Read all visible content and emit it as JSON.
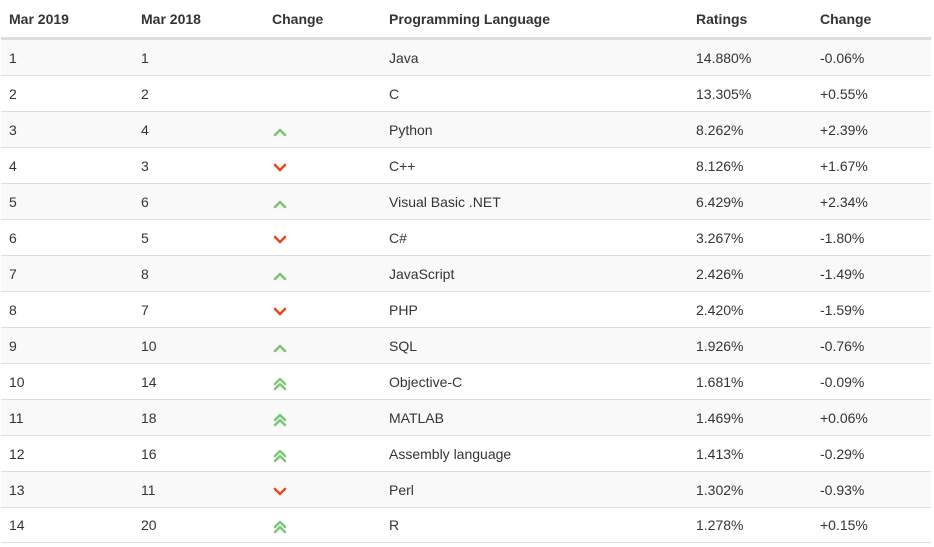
{
  "table": {
    "headers": [
      "Mar 2019",
      "Mar 2018",
      "Change",
      "Programming Language",
      "Ratings",
      "Change"
    ],
    "rows": [
      {
        "rank2019": "1",
        "rank2018": "1",
        "trend": "none",
        "language": "Java",
        "rating": "14.880%",
        "change": "-0.06%"
      },
      {
        "rank2019": "2",
        "rank2018": "2",
        "trend": "none",
        "language": "C",
        "rating": "13.305%",
        "change": "+0.55%"
      },
      {
        "rank2019": "3",
        "rank2018": "4",
        "trend": "up",
        "language": "Python",
        "rating": "8.262%",
        "change": "+2.39%"
      },
      {
        "rank2019": "4",
        "rank2018": "3",
        "trend": "down",
        "language": "C++",
        "rating": "8.126%",
        "change": "+1.67%"
      },
      {
        "rank2019": "5",
        "rank2018": "6",
        "trend": "up",
        "language": "Visual Basic .NET",
        "rating": "6.429%",
        "change": "+2.34%"
      },
      {
        "rank2019": "6",
        "rank2018": "5",
        "trend": "down",
        "language": "C#",
        "rating": "3.267%",
        "change": "-1.80%"
      },
      {
        "rank2019": "7",
        "rank2018": "8",
        "trend": "up",
        "language": "JavaScript",
        "rating": "2.426%",
        "change": "-1.49%"
      },
      {
        "rank2019": "8",
        "rank2018": "7",
        "trend": "down",
        "language": "PHP",
        "rating": "2.420%",
        "change": "-1.59%"
      },
      {
        "rank2019": "9",
        "rank2018": "10",
        "trend": "up",
        "language": "SQL",
        "rating": "1.926%",
        "change": "-0.76%"
      },
      {
        "rank2019": "10",
        "rank2018": "14",
        "trend": "double-up",
        "language": "Objective-C",
        "rating": "1.681%",
        "change": "-0.09%"
      },
      {
        "rank2019": "11",
        "rank2018": "18",
        "trend": "double-up",
        "language": "MATLAB",
        "rating": "1.469%",
        "change": "+0.06%"
      },
      {
        "rank2019": "12",
        "rank2018": "16",
        "trend": "double-up",
        "language": "Assembly language",
        "rating": "1.413%",
        "change": "-0.29%"
      },
      {
        "rank2019": "13",
        "rank2018": "11",
        "trend": "down",
        "language": "Perl",
        "rating": "1.302%",
        "change": "-0.93%"
      },
      {
        "rank2019": "14",
        "rank2018": "20",
        "trend": "double-up",
        "language": "R",
        "rating": "1.278%",
        "change": "+0.15%"
      }
    ]
  },
  "icons": {
    "up": "chevron-up-icon",
    "down": "chevron-down-icon",
    "double-up": "double-chevron-up-icon"
  },
  "colors": {
    "up": "#7cc576",
    "down": "#e8481f",
    "header_border": "#dddddd",
    "stripe": "#f9f9f9"
  }
}
